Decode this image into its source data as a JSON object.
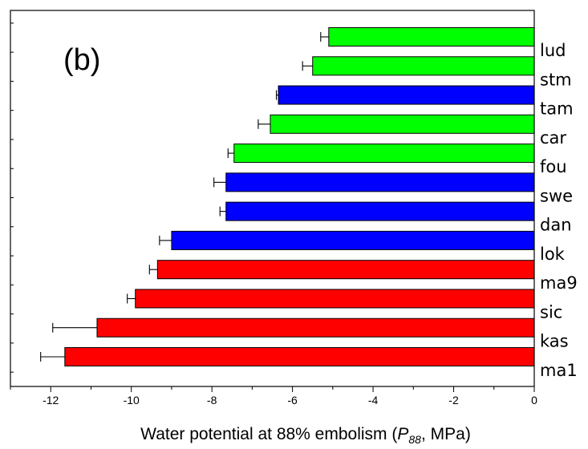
{
  "chart_data": {
    "type": "bar",
    "orientation": "horizontal",
    "panel_label": "(b)",
    "xlabel": {
      "prefix": "Water potential at 88% embolism (",
      "symbol": "P",
      "subscript": "88",
      "suffix": ", MPa)"
    },
    "xlim": [
      -13,
      0
    ],
    "xticks": [
      "-12",
      "-10",
      "-8",
      "-6",
      "-4",
      "-2",
      "0"
    ],
    "xtick_values": [
      -12,
      -10,
      -8,
      -6,
      -4,
      -2,
      0
    ],
    "category_label_side": "right",
    "grid": false,
    "colors": {
      "green": "#00ff00",
      "blue": "#0000ff",
      "red": "#ff0000"
    },
    "bars": [
      {
        "category": "lud",
        "value": -5.1,
        "error": 0.2,
        "color": "green"
      },
      {
        "category": "stm",
        "value": -5.5,
        "error": 0.25,
        "color": "green"
      },
      {
        "category": "tam",
        "value": -6.35,
        "error": 0.05,
        "color": "blue"
      },
      {
        "category": "car",
        "value": -6.55,
        "error": 0.3,
        "color": "green"
      },
      {
        "category": "fou",
        "value": -7.45,
        "error": 0.15,
        "color": "green"
      },
      {
        "category": "swe",
        "value": -7.65,
        "error": 0.3,
        "color": "blue"
      },
      {
        "category": "dan",
        "value": -7.65,
        "error": 0.15,
        "color": "blue"
      },
      {
        "category": "lok",
        "value": -9.0,
        "error": 0.3,
        "color": "blue"
      },
      {
        "category": "ma9",
        "value": -9.35,
        "error": 0.2,
        "color": "red"
      },
      {
        "category": "sic",
        "value": -9.9,
        "error": 0.2,
        "color": "red"
      },
      {
        "category": "kas",
        "value": -10.85,
        "error": 1.1,
        "color": "red"
      },
      {
        "category": "ma1",
        "value": -11.65,
        "error": 0.6,
        "color": "red"
      }
    ]
  }
}
